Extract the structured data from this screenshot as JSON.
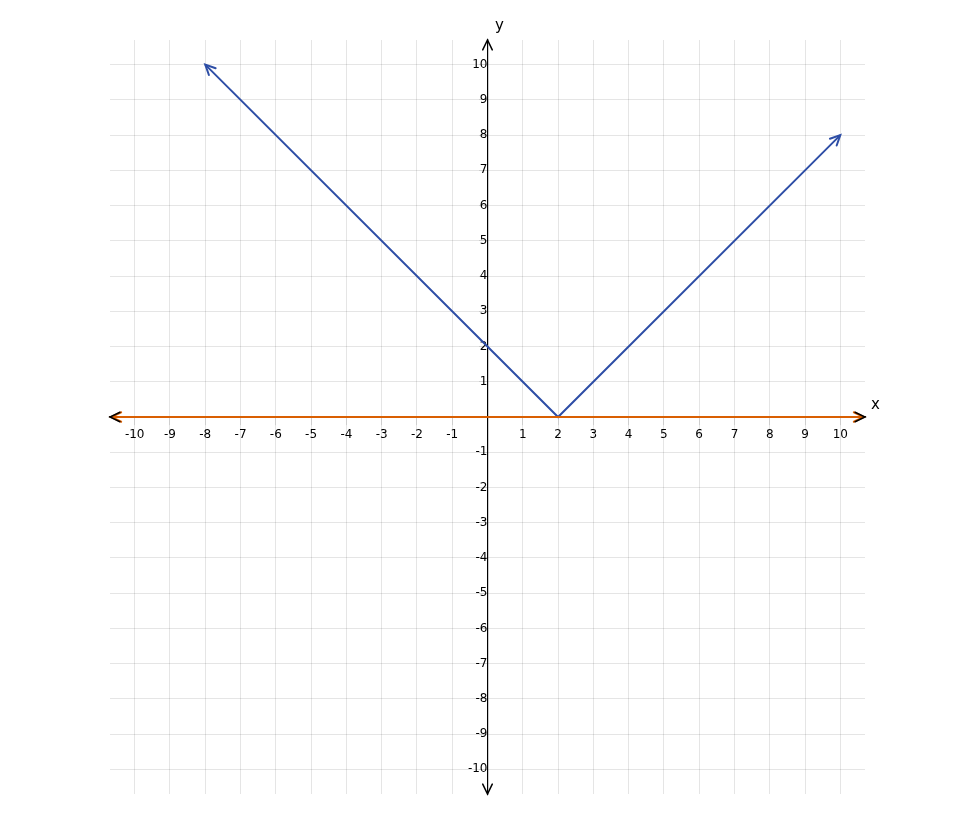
{
  "chart_data": {
    "type": "line",
    "xlabel": "x",
    "ylabel": "y",
    "xlim": [
      -10.7,
      10.7
    ],
    "ylim": [
      -10.7,
      10.7
    ],
    "xticks": [
      -10,
      -9,
      -8,
      -7,
      -6,
      -5,
      -4,
      -3,
      -2,
      -1,
      1,
      2,
      3,
      4,
      5,
      6,
      7,
      8,
      9,
      10
    ],
    "yticks": [
      -10,
      -9,
      -8,
      -7,
      -6,
      -5,
      -4,
      -3,
      -2,
      -1,
      1,
      2,
      3,
      4,
      5,
      6,
      7,
      8,
      9,
      10
    ],
    "grid": true,
    "series": [
      {
        "color": "#D95F02",
        "x": [
          -10.665,
          10.665
        ],
        "values": [
          0,
          0
        ]
      },
      {
        "color": "#2E4EA6",
        "x": [
          -8,
          2,
          10
        ],
        "values": [
          10,
          0,
          8
        ]
      }
    ]
  }
}
